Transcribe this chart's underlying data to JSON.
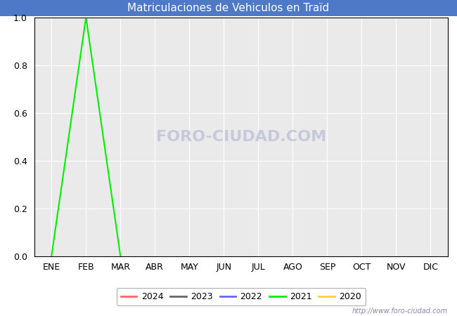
{
  "title": "Matriculaciones de Vehiculos en Traïd",
  "title_bg_color": "#4d79c7",
  "title_text_color": "#ffffff",
  "plot_bg_color": "#eaeaea",
  "fig_bg_color": "#ffffff",
  "months": [
    "ENE",
    "FEB",
    "MAR",
    "ABR",
    "MAY",
    "JUN",
    "JUL",
    "AGO",
    "SEP",
    "OCT",
    "NOV",
    "DIC"
  ],
  "month_indices": [
    1,
    2,
    3,
    4,
    5,
    6,
    7,
    8,
    9,
    10,
    11,
    12
  ],
  "ylim": [
    0.0,
    1.0
  ],
  "yticks": [
    0.0,
    0.2,
    0.4,
    0.6,
    0.8,
    1.0
  ],
  "series": {
    "2024": {
      "color": "#ff6666",
      "data": {}
    },
    "2023": {
      "color": "#666666",
      "data": {}
    },
    "2022": {
      "color": "#6666ff",
      "data": {}
    },
    "2021": {
      "color": "#00ee00",
      "data": {
        "1": 0.0,
        "2": 1.0,
        "3": 0.0
      }
    },
    "2020": {
      "color": "#ffcc44",
      "data": {}
    }
  },
  "legend_order": [
    "2024",
    "2023",
    "2022",
    "2021",
    "2020"
  ],
  "watermark_text": "FORO-CIUDAD.COM",
  "watermark_color": "#c8c8dc",
  "watermark_url": "http://www.foro-ciudad.com",
  "watermark_url_color": "#8888aa",
  "grid_color": "#ffffff",
  "spine_color": "#000000",
  "tick_fontsize": 9,
  "legend_fontsize": 9
}
